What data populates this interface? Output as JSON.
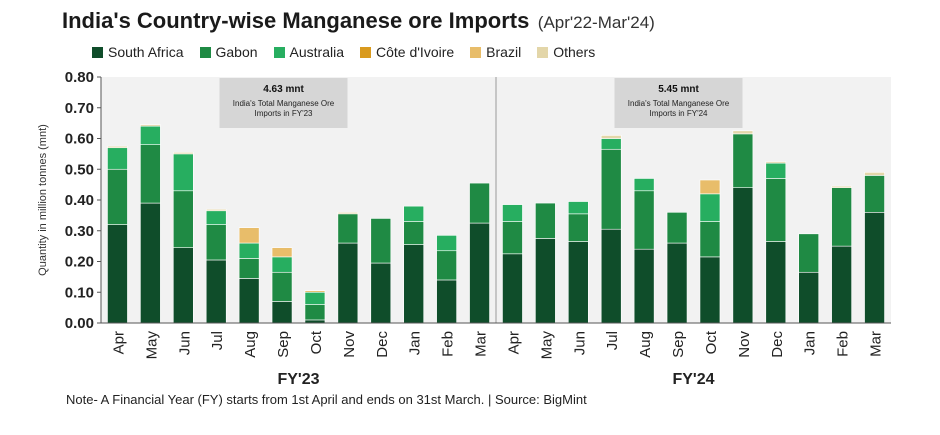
{
  "title": "India's Country-wise Manganese ore Imports",
  "subtitle": "(Apr'22-Mar'24)",
  "note": "Note- A Financial Year (FY) starts from 1st April and ends on 31st March. | Source: BigMint",
  "chart_data": {
    "type": "bar",
    "stacked": true,
    "ylabel": "Quantity in million tonnes (mnt)",
    "ylim": [
      0,
      0.8
    ],
    "yticks": [
      "0.00",
      "0.10",
      "0.20",
      "0.30",
      "0.40",
      "0.50",
      "0.60",
      "0.70",
      "0.80"
    ],
    "grid": false,
    "legend_position": "top",
    "categories": [
      "Apr",
      "May",
      "Jun",
      "Jul",
      "Aug",
      "Sep",
      "Oct",
      "Nov",
      "Dec",
      "Jan",
      "Feb",
      "Mar",
      "Apr",
      "May",
      "Jun",
      "Jul",
      "Aug",
      "Sep",
      "Oct",
      "Nov",
      "Dec",
      "Jan",
      "Feb",
      "Mar"
    ],
    "groups": [
      {
        "label": "FY'23",
        "start": 0,
        "end": 11
      },
      {
        "label": "FY'24",
        "start": 12,
        "end": 23
      }
    ],
    "annotations": [
      {
        "group": "FY'23",
        "value": "4.63 mnt",
        "text": "India's Total Manganese Ore Imports in FY'23"
      },
      {
        "group": "FY'24",
        "value": "5.45 mnt",
        "text": "India's Total Manganese Ore Imports in FY'24"
      }
    ],
    "series": [
      {
        "name": "South Africa",
        "color": "#0f4d2a",
        "values": [
          0.32,
          0.39,
          0.245,
          0.205,
          0.145,
          0.07,
          0.01,
          0.26,
          0.195,
          0.255,
          0.14,
          0.325,
          0.225,
          0.275,
          0.265,
          0.305,
          0.24,
          0.26,
          0.215,
          0.44,
          0.265,
          0.165,
          0.25,
          0.36
        ]
      },
      {
        "name": "Gabon",
        "color": "#1f8a44",
        "values": [
          0.18,
          0.19,
          0.185,
          0.115,
          0.065,
          0.095,
          0.05,
          0.095,
          0.145,
          0.075,
          0.095,
          0.13,
          0.105,
          0.115,
          0.09,
          0.26,
          0.19,
          0.1,
          0.115,
          0.175,
          0.205,
          0.125,
          0.19,
          0.12
        ]
      },
      {
        "name": "Australia",
        "color": "#27ae60",
        "values": [
          0.07,
          0.06,
          0.12,
          0.045,
          0.05,
          0.05,
          0.04,
          0.0,
          0.0,
          0.05,
          0.05,
          0.0,
          0.055,
          0.0,
          0.04,
          0.035,
          0.04,
          0.0,
          0.09,
          0.0,
          0.05,
          0.0,
          0.0,
          0.0
        ]
      },
      {
        "name": "Côte d'Ivoire",
        "color": "#d99a1e",
        "values": [
          0.0,
          0.0,
          0.0,
          0.0,
          0.0,
          0.0,
          0.0,
          0.0,
          0.0,
          0.0,
          0.0,
          0.0,
          0.0,
          0.0,
          0.0,
          0.0,
          0.0,
          0.0,
          0.0,
          0.0,
          0.0,
          0.0,
          0.0,
          0.0
        ]
      },
      {
        "name": "Brazil",
        "color": "#e8bd6a",
        "values": [
          0.0,
          0.0,
          0.0,
          0.0,
          0.05,
          0.03,
          0.005,
          0.0,
          0.0,
          0.0,
          0.0,
          0.0,
          0.0,
          0.0,
          0.0,
          0.0,
          0.0,
          0.0,
          0.045,
          0.0,
          0.0,
          0.0,
          0.0,
          0.0
        ]
      },
      {
        "name": "Others",
        "color": "#e3d6a9",
        "values": [
          0.005,
          0.005,
          0.005,
          0.005,
          0.0,
          0.0,
          0.0,
          0.005,
          0.0,
          0.0,
          0.0,
          0.0,
          0.0,
          0.0,
          0.0,
          0.01,
          0.0,
          0.0,
          0.0,
          0.01,
          0.005,
          0.0,
          0.005,
          0.01
        ]
      }
    ]
  }
}
